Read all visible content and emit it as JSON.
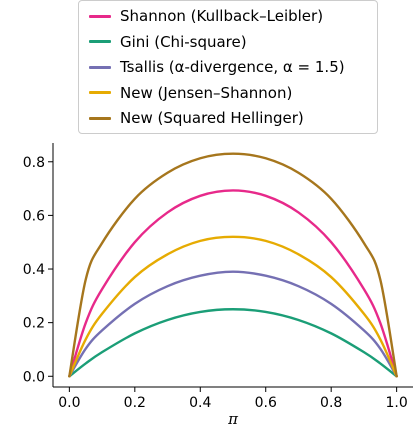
{
  "chart_data": {
    "type": "line",
    "xlabel": "π",
    "ylabel": "",
    "xlim": [
      -0.05,
      1.05
    ],
    "ylim": [
      -0.04,
      0.87
    ],
    "x_ticks": [
      "0.0",
      "0.2",
      "0.4",
      "0.6",
      "0.8",
      "1.0"
    ],
    "y_ticks": [
      "0.0",
      "0.2",
      "0.4",
      "0.6",
      "0.8"
    ],
    "grid": false,
    "legend_position": "top-center",
    "x": [
      0.0,
      0.05,
      0.1,
      0.2,
      0.3,
      0.4,
      0.5,
      0.6,
      0.7,
      0.8,
      0.9,
      0.95,
      1.0
    ],
    "series": [
      {
        "name": "Shannon (Kullback–Leibler)",
        "color": "#e7298a",
        "values": [
          0.0,
          0.199,
          0.325,
          0.5,
          0.611,
          0.673,
          0.693,
          0.673,
          0.611,
          0.5,
          0.325,
          0.199,
          0.0
        ]
      },
      {
        "name": "Gini (Chi-square)",
        "color": "#1b9e77",
        "values": [
          0.0,
          0.048,
          0.09,
          0.16,
          0.21,
          0.24,
          0.25,
          0.24,
          0.21,
          0.16,
          0.09,
          0.048,
          0.0
        ]
      },
      {
        "name": "Tsallis (α-divergence, α = 1.5)",
        "color": "#7570b3",
        "values": [
          0.0,
          0.103,
          0.171,
          0.27,
          0.336,
          0.375,
          0.39,
          0.375,
          0.336,
          0.27,
          0.171,
          0.103,
          0.0
        ]
      },
      {
        "name": "New (Jensen–Shannon)",
        "color": "#e6ab02",
        "values": [
          0.0,
          0.138,
          0.233,
          0.37,
          0.455,
          0.505,
          0.52,
          0.505,
          0.455,
          0.37,
          0.233,
          0.138,
          0.0
        ]
      },
      {
        "name": "New (Squared Hellinger)",
        "color": "#a6761d",
        "values": [
          0.0,
          0.361,
          0.497,
          0.662,
          0.759,
          0.813,
          0.83,
          0.813,
          0.759,
          0.662,
          0.497,
          0.361,
          0.0
        ]
      }
    ]
  }
}
